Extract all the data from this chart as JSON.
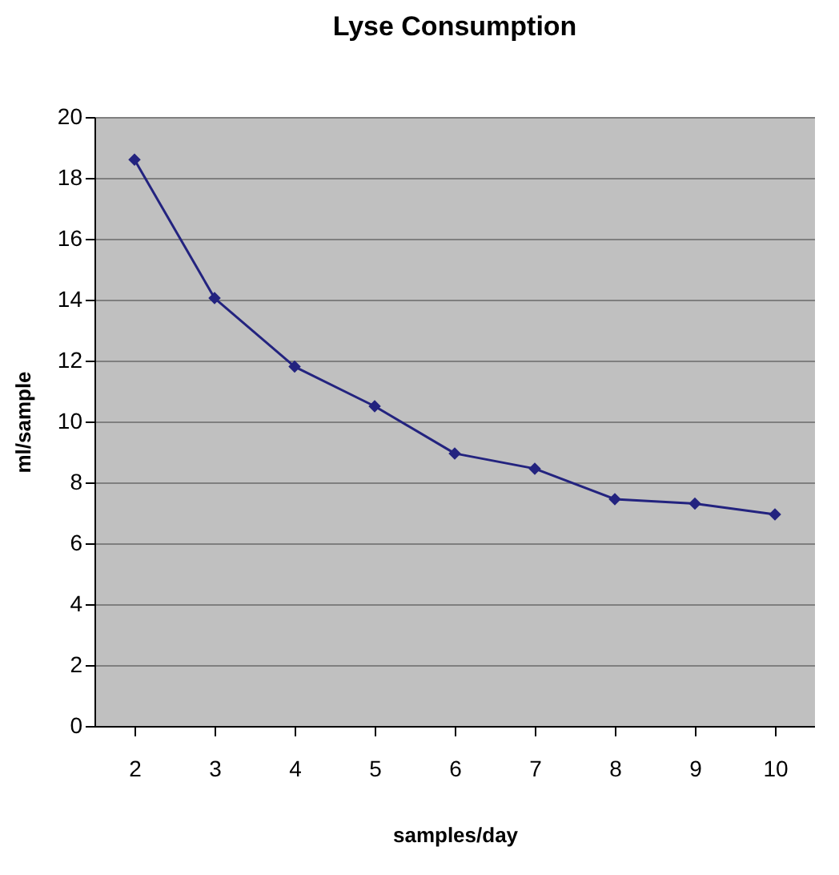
{
  "chart_data": {
    "type": "line",
    "title": "Lyse Consumption",
    "xlabel": "samples/day",
    "ylabel": "ml/sample",
    "categories": [
      "2",
      "3",
      "4",
      "5",
      "6",
      "7",
      "8",
      "9",
      "10"
    ],
    "series": [
      {
        "color": "#23237f",
        "values": [
          18.6,
          14.05,
          11.8,
          10.5,
          8.95,
          8.45,
          7.45,
          7.3,
          6.95
        ]
      }
    ],
    "ylim": [
      0,
      20
    ],
    "yticks": [
      0,
      2,
      4,
      6,
      8,
      10,
      12,
      14,
      16,
      18,
      20
    ],
    "grid": "y",
    "marker": "diamond"
  }
}
